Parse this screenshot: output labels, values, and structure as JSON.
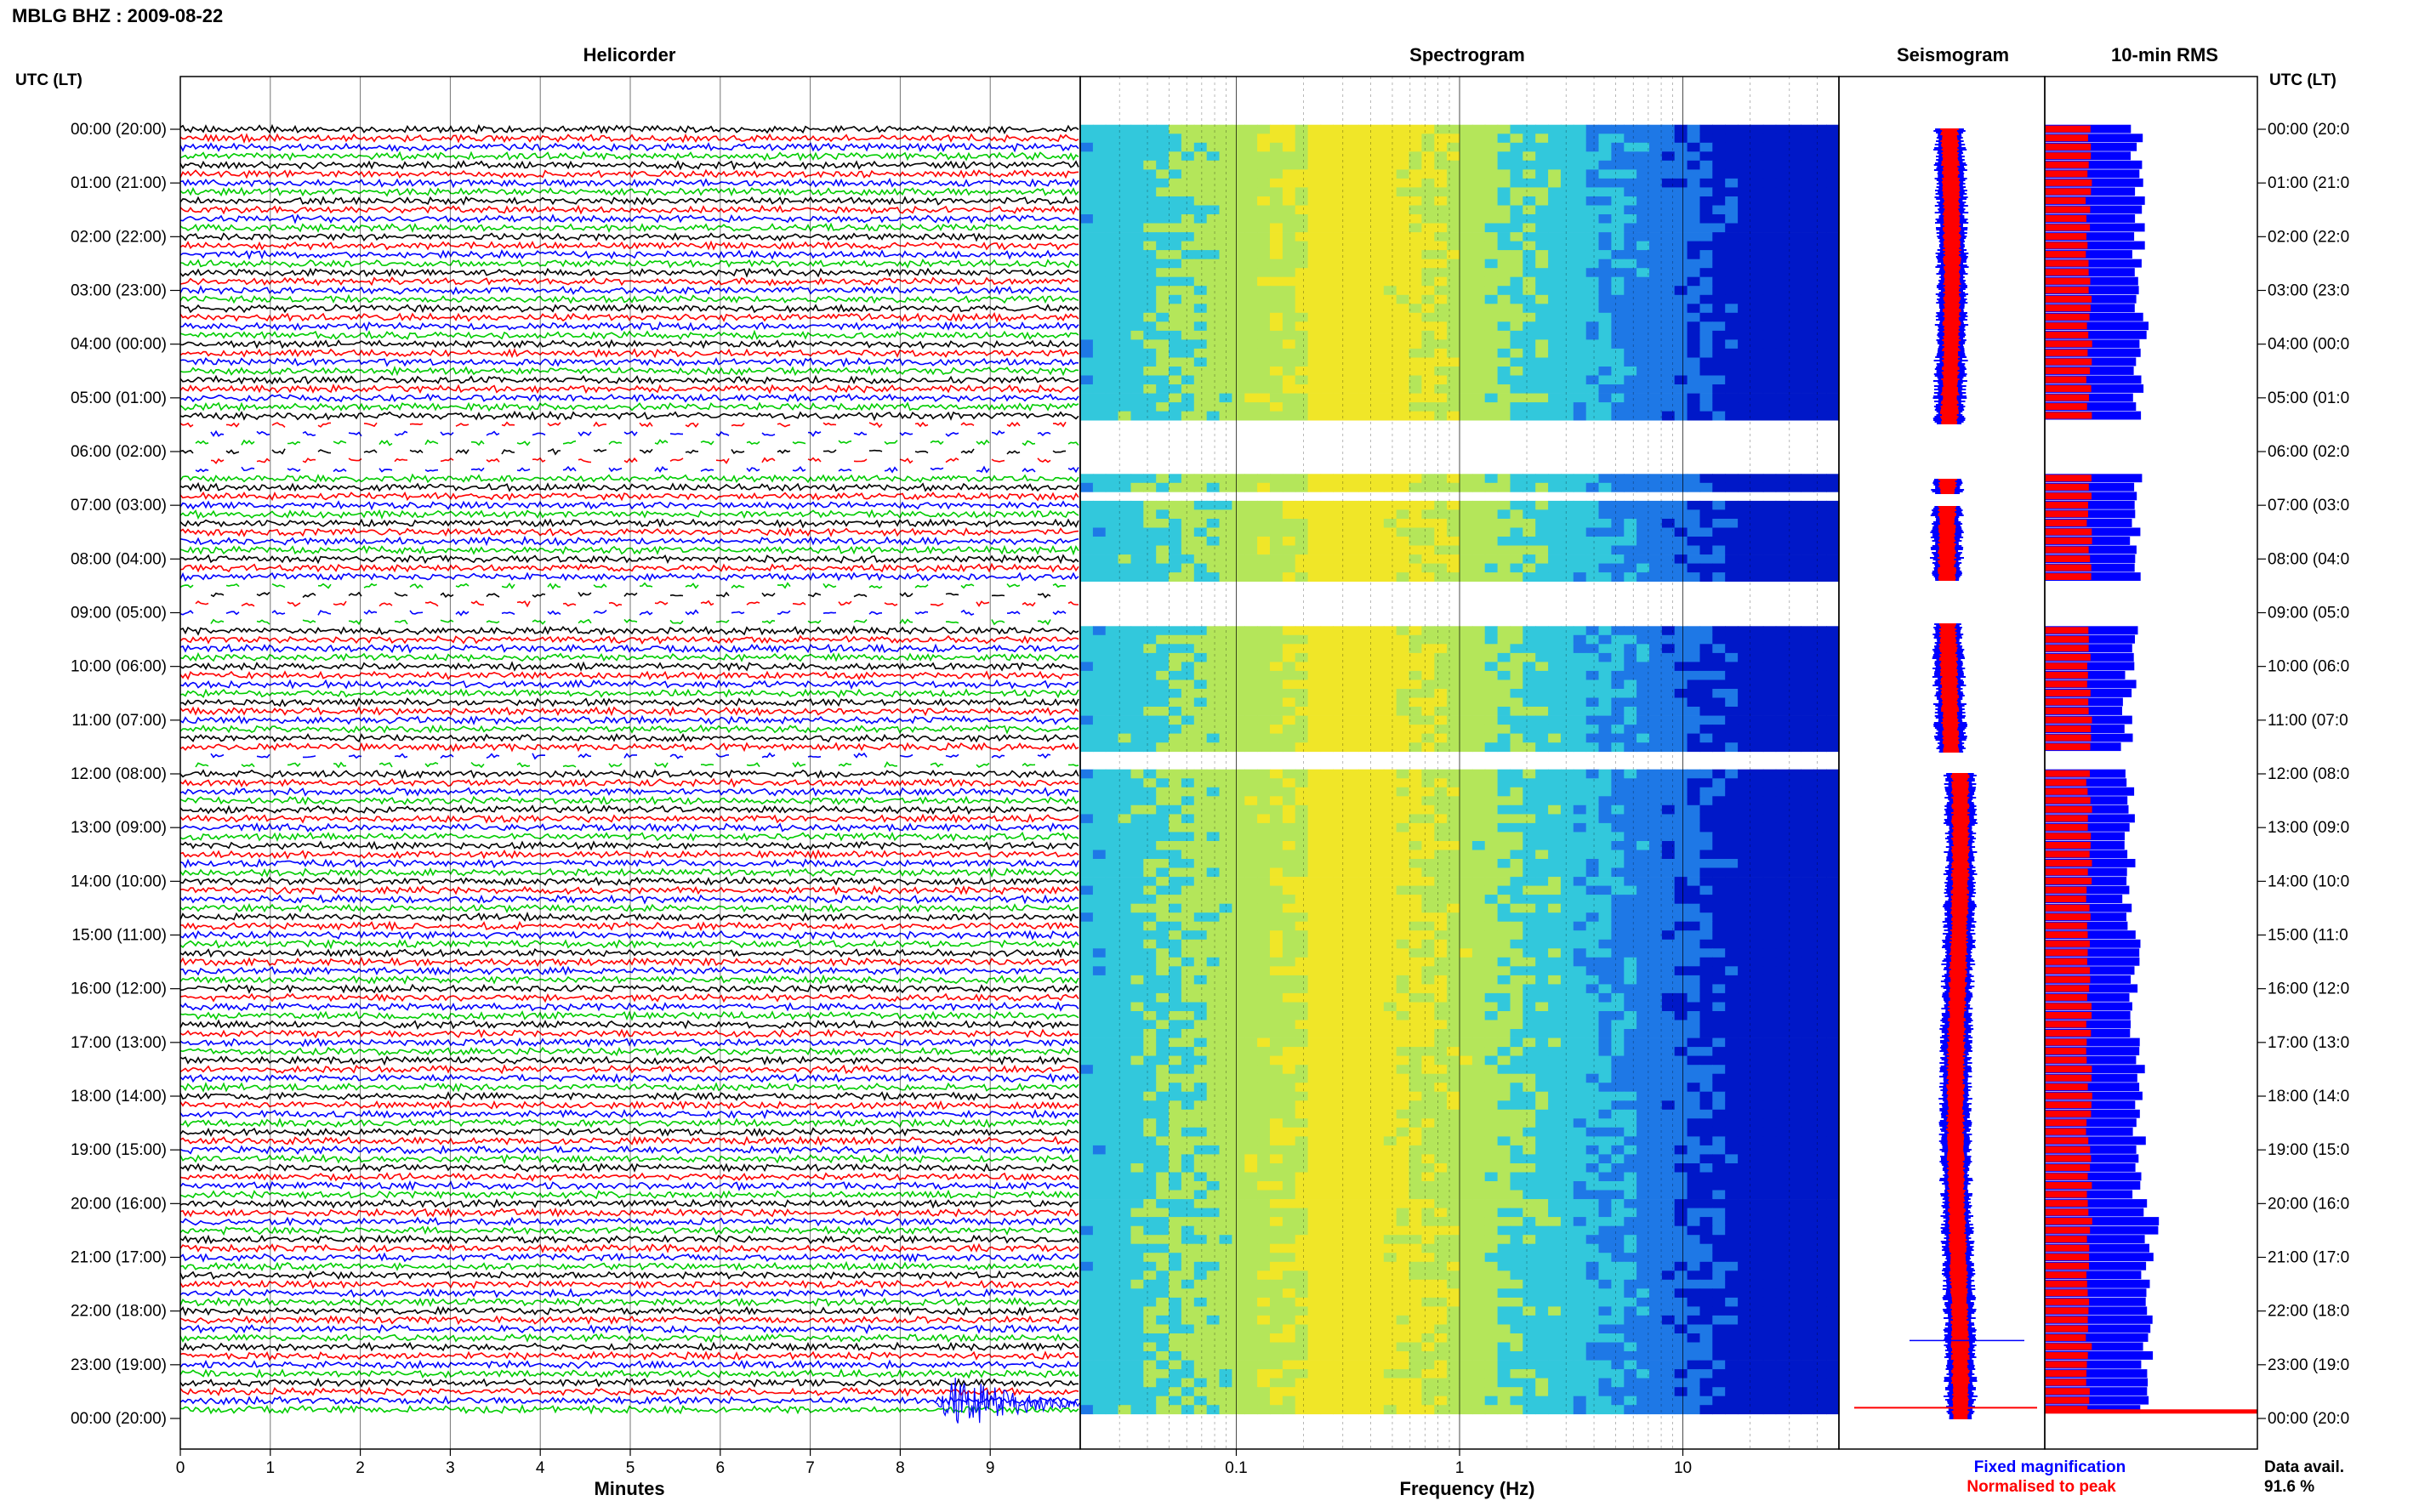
{
  "title": "MBLG BHZ : 2009-08-22",
  "panels": {
    "helicorder": "Helicorder",
    "spectrogram": "Spectrogram",
    "seismogram": "Seismogram",
    "rms": "10-min RMS"
  },
  "left_axis_label": "UTC (LT)",
  "right_axis_label": "UTC (LT)",
  "time_labels": [
    "00:00 (20:00)",
    "01:00 (21:00)",
    "02:00 (22:00)",
    "03:00 (23:00)",
    "04:00 (00:00)",
    "05:00 (01:00)",
    "06:00 (02:00)",
    "07:00 (03:00)",
    "08:00 (04:00)",
    "09:00 (05:00)",
    "10:00 (06:00)",
    "11:00 (07:00)",
    "12:00 (08:00)",
    "13:00 (09:00)",
    "14:00 (10:00)",
    "15:00 (11:00)",
    "16:00 (12:00)",
    "17:00 (13:00)",
    "18:00 (14:00)",
    "19:00 (15:00)",
    "20:00 (16:00)",
    "21:00 (17:00)",
    "22:00 (18:00)",
    "23:00 (19:00)",
    "00:00 (20:00)"
  ],
  "right_time_labels": [
    "00:00 (20:0",
    "01:00 (21:0",
    "02:00 (22:0",
    "03:00 (23:0",
    "04:00 (00:0",
    "05:00 (01:0",
    "06:00 (02:0",
    "07:00 (03:0",
    "08:00 (04:0",
    "09:00 (05:0",
    "10:00 (06:0",
    "11:00 (07:0",
    "12:00 (08:0",
    "13:00 (09:0",
    "14:00 (10:0",
    "15:00 (11:0",
    "16:00 (12:0",
    "17:00 (13:0",
    "18:00 (14:0",
    "19:00 (15:0",
    "20:00 (16:0",
    "21:00 (17:0",
    "22:00 (18:0",
    "23:00 (19:0",
    "00:00 (20:0"
  ],
  "minute_ticks": [
    "0",
    "1",
    "2",
    "3",
    "4",
    "5",
    "6",
    "7",
    "8",
    "9"
  ],
  "minutes_label": "Minutes",
  "frequency_ticks": [
    "0.1",
    "1",
    "10"
  ],
  "frequency_label": "Frequency (Hz)",
  "legend": {
    "fixed": "Fixed magnification",
    "normalised": "Normalised to peak",
    "fixed_color": "#0000ff",
    "normalised_color": "#ff0000"
  },
  "data_avail_label": "Data avail.",
  "data_avail_value": "91.6 %",
  "colors": {
    "trace_cycle": [
      "#000000",
      "#ff0000",
      "#0000ff",
      "#00cc00"
    ],
    "spectrogram_scale": [
      "#0018c8",
      "#1e78e6",
      "#32c8dc",
      "#b4e65a",
      "#f0e628"
    ]
  },
  "chart_data": [
    {
      "type": "line",
      "name": "Helicorder",
      "xlabel": "Minutes",
      "xlim": [
        0,
        10
      ],
      "traces_per_hour": 6,
      "hours": 24,
      "data_gaps_utc_hours": [
        [
          5.5,
          6.5
        ],
        [
          8.4,
          9.2
        ],
        [
          11.6,
          12.0
        ]
      ],
      "events": [
        {
          "minute": 8.4,
          "hour": 23.7,
          "note": "large blue event"
        }
      ]
    },
    {
      "type": "heatmap",
      "name": "Spectrogram",
      "xlabel": "Frequency (Hz)",
      "xscale": "log",
      "xlim": [
        0.02,
        50
      ],
      "peak_band_hz": [
        0.2,
        0.35
      ],
      "gaps_utc_hours": [
        [
          5.5,
          6.5
        ],
        [
          6.8,
          7.0
        ],
        [
          8.4,
          9.2
        ],
        [
          11.6,
          12.0
        ]
      ]
    },
    {
      "type": "line",
      "name": "Seismogram",
      "series": [
        "Fixed magnification",
        "Normalised to peak"
      ]
    },
    {
      "type": "bar",
      "name": "10-min RMS",
      "series": [
        "Fixed magnification",
        "Normalised to peak"
      ],
      "gaps_utc_hours": [
        [
          5.5,
          6.5
        ],
        [
          8.4,
          9.2
        ],
        [
          11.6,
          12.0
        ]
      ]
    }
  ]
}
